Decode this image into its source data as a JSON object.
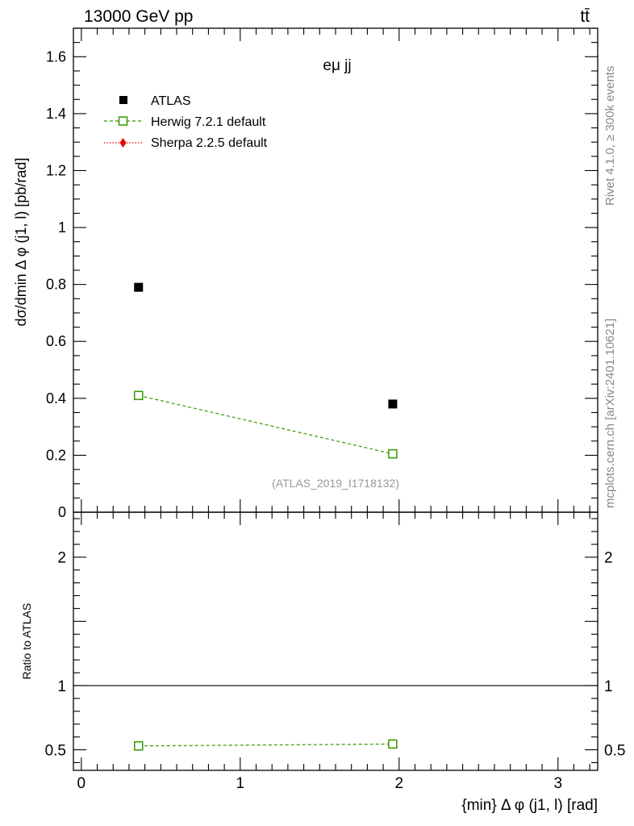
{
  "header": {
    "energy": "13000 GeV pp",
    "process": "tt̄"
  },
  "side_text": {
    "rivet": "Rivet 4.1.0, ≥ 300k events",
    "mcplots": "mcplots.cern.ch [arXiv:2401.10621]"
  },
  "chart_data": [
    {
      "type": "scatter",
      "panel": "main",
      "title": "eμ jj",
      "xlabel": "{min} Δ φ (j1, l) [rad]",
      "ylabel": "dσ/dmin Δ φ (j1, l) [pb/rad]",
      "xlim": [
        -0.05,
        3.25
      ],
      "ylim": [
        0,
        1.7
      ],
      "yticks": [
        "0",
        "0.2",
        "0.4",
        "0.6",
        "0.8",
        "1",
        "1.2",
        "1.4",
        "1.6"
      ],
      "xticks": [
        "0",
        "1",
        "2",
        "3"
      ],
      "watermark": "(ATLAS_2019_I1718132)",
      "legend_position": "top-left",
      "series": [
        {
          "name": "ATLAS",
          "marker": "filled-square",
          "color": "#000000",
          "x": [
            0.36,
            1.96
          ],
          "values": [
            0.79,
            0.38
          ]
        },
        {
          "name": "Herwig 7.2.1 default",
          "marker": "open-square",
          "line": "dashed",
          "color": "#339900",
          "x": [
            0.36,
            1.96
          ],
          "values": [
            0.41,
            0.205
          ]
        },
        {
          "name": "Sherpa 2.2.5 default",
          "marker": "diamond",
          "line": "dotted",
          "color": "#ee0000",
          "x": [],
          "values": []
        }
      ]
    },
    {
      "type": "scatter",
      "panel": "ratio",
      "ylabel": "Ratio to ATLAS",
      "xlim": [
        -0.05,
        3.25
      ],
      "ylim": [
        0.34,
        2.35
      ],
      "yticks": [
        "0.5",
        "1",
        "2"
      ],
      "reference": 1,
      "series": [
        {
          "name": "Herwig 7.2.1 default",
          "marker": "open-square",
          "line": "dashed",
          "color": "#339900",
          "x": [
            0.36,
            1.96
          ],
          "values": [
            0.53,
            0.545
          ]
        }
      ]
    }
  ]
}
